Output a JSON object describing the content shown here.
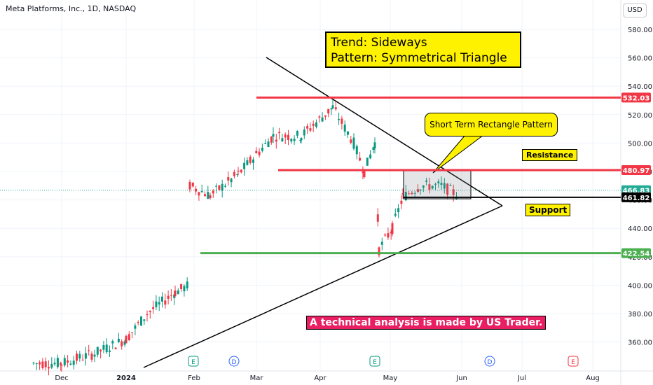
{
  "header": {
    "title": "Meta Platforms, Inc., 1D, NASDAQ",
    "currency": "USD"
  },
  "annotations": {
    "trend_line1": "Trend: Sideways",
    "trend_line2": "Pattern: Symmetrical Triangle",
    "callout": "Short Term Rectangle Pattern",
    "resistance": "Resistance",
    "support": "Support",
    "footer": "A  technical analysis is made by US Trader."
  },
  "chart_data": {
    "type": "candlestick",
    "ylim": [
      340,
      590
    ],
    "y_ticks": [
      360,
      380,
      400,
      420,
      440,
      460,
      480,
      500,
      520,
      540,
      560,
      580
    ],
    "x_labels": [
      "Dec",
      "2024",
      "Feb",
      "Mar",
      "Apr",
      "May",
      "Jun",
      "Jul",
      "Aug"
    ],
    "levels": [
      {
        "label": "532.03",
        "value": 532.03,
        "color": "#f23645"
      },
      {
        "label": "480.97",
        "value": 480.97,
        "color": "#f23645"
      },
      {
        "label": "466.83",
        "value": 466.83,
        "color": "#22ab94"
      },
      {
        "label": "461.82",
        "value": 461.82,
        "color": "#000000"
      },
      {
        "label": "422.54",
        "value": 422.54,
        "color": "#4caf50"
      }
    ],
    "events": [
      {
        "label": "E",
        "color": "#089981"
      },
      {
        "label": "D",
        "color": "#2962ff"
      },
      {
        "label": "E",
        "color": "#089981"
      },
      {
        "label": "D",
        "color": "#2962ff"
      },
      {
        "label": "E",
        "color": "#f23645"
      }
    ],
    "colors": {
      "up": "#089981",
      "down": "#f23645"
    }
  }
}
